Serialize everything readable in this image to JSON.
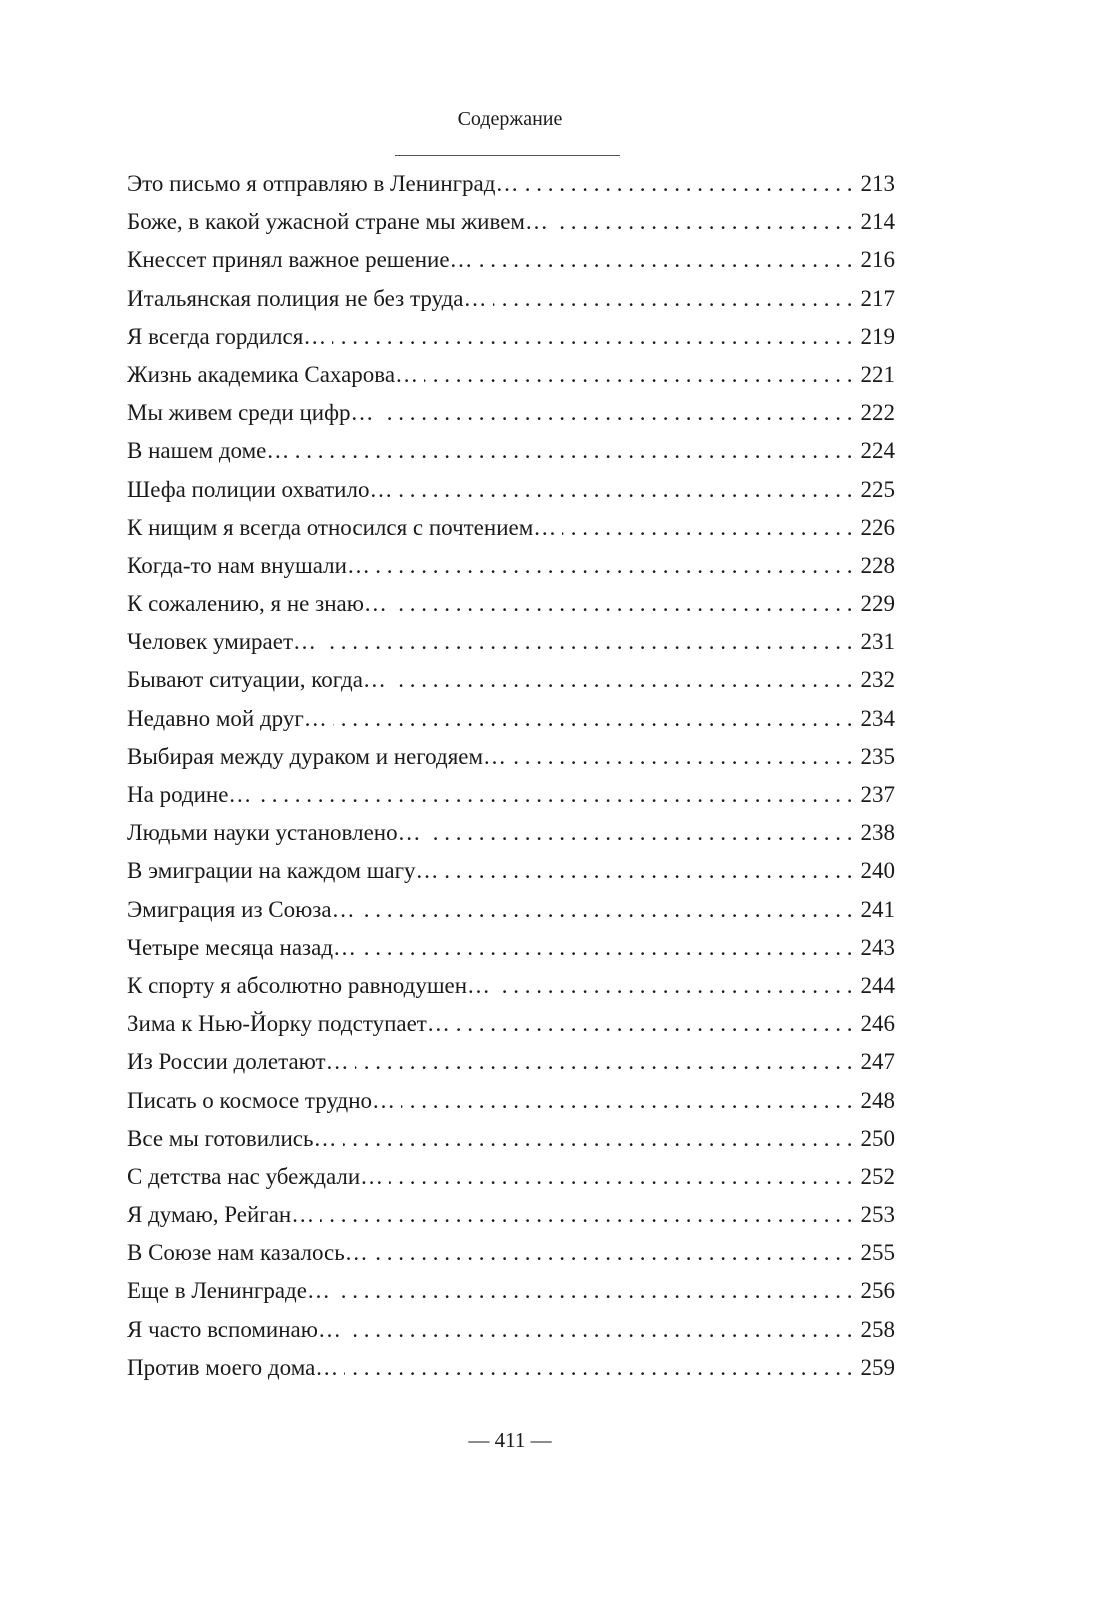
{
  "header": {
    "title": "Содержание"
  },
  "entries": [
    {
      "title": "Это письмо я отправляю в Ленинград…",
      "page": "213"
    },
    {
      "title": "Боже, в какой ужасной стране мы живем…",
      "page": "214"
    },
    {
      "title": "Кнессет принял важное решение…",
      "page": "216"
    },
    {
      "title": "Итальянская полиция не без труда…",
      "page": "217"
    },
    {
      "title": "Я всегда гордился…",
      "page": "219"
    },
    {
      "title": "Жизнь академика Сахарова…",
      "page": "221"
    },
    {
      "title": "Мы живем среди цифр…",
      "page": "222"
    },
    {
      "title": "В нашем доме…",
      "page": "224"
    },
    {
      "title": "Шефа полиции охватило…",
      "page": "225"
    },
    {
      "title": "К нищим я всегда относился с почтением…",
      "page": "226"
    },
    {
      "title": "Когда-то нам внушали…",
      "page": "228"
    },
    {
      "title": "К сожалению, я не знаю…",
      "page": "229"
    },
    {
      "title": "Человек умирает…",
      "page": "231"
    },
    {
      "title": "Бывают ситуации, когда…",
      "page": "232"
    },
    {
      "title": "Недавно мой друг…",
      "page": "234"
    },
    {
      "title": "Выбирая между дураком и негодяем…",
      "page": "235"
    },
    {
      "title": "На родине…",
      "page": "237"
    },
    {
      "title": "Людьми науки установлено…",
      "page": "238"
    },
    {
      "title": "В эмиграции на каждом шагу…",
      "page": "240"
    },
    {
      "title": "Эмиграция из Союза…",
      "page": "241"
    },
    {
      "title": "Четыре месяца назад…",
      "page": "243"
    },
    {
      "title": "К спорту я абсолютно равнодушен…",
      "page": "244"
    },
    {
      "title": "Зима к Нью-Йорку подступает…",
      "page": "246"
    },
    {
      "title": "Из России долетают…",
      "page": "247"
    },
    {
      "title": "Писать о космосе трудно…",
      "page": "248"
    },
    {
      "title": "Все мы готовились…",
      "page": "250"
    },
    {
      "title": "С детства нас убеждали…",
      "page": "252"
    },
    {
      "title": "Я думаю, Рейган…",
      "page": "253"
    },
    {
      "title": "В Союзе нам казалось…",
      "page": "255"
    },
    {
      "title": "Еще в Ленинграде…",
      "page": "256"
    },
    {
      "title": "Я часто вспоминаю…",
      "page": "258"
    },
    {
      "title": "Против моего дома…",
      "page": "259"
    }
  ],
  "footer": {
    "page_number": "— 411 —"
  }
}
